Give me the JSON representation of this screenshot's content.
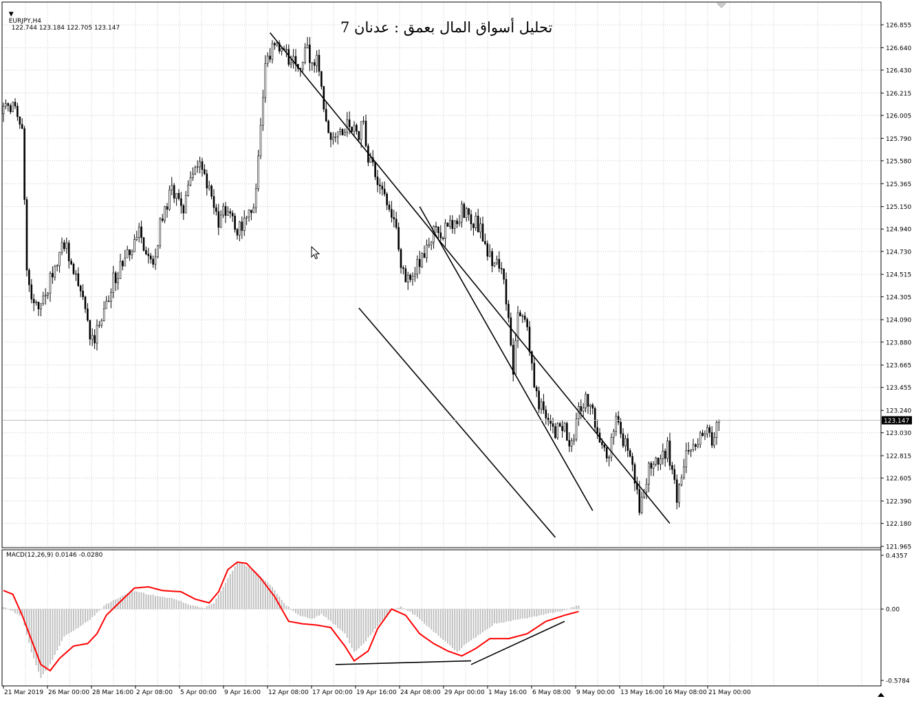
{
  "symbol_info": {
    "label": "EURJPY,H4",
    "ohlc": "122.744 123.184 122.705 123.147"
  },
  "title": "تحليل أسواق المال بعمق : عدنان 7",
  "macd_info": {
    "label": "MACD(12,26,9) 0.0146 -0.0280"
  },
  "icons": {
    "collapse": "triangle-down-icon",
    "scroll": "chart-scroll-marker-icon",
    "cursor": "mouse-pointer-icon"
  },
  "colors": {
    "candles": "#000000",
    "grid": "#c8c8c8",
    "histogram": "#c0c0c0",
    "signal": "#ff0000",
    "trendlines": "#000000",
    "current_price_line": "#c0c0c0"
  },
  "chart_data": [
    {
      "type": "candlestick",
      "symbol": "EURJPY",
      "timeframe": "H4",
      "y_ticks": [
        "126.855",
        "126.640",
        "126.430",
        "126.215",
        "126.005",
        "125.790",
        "125.580",
        "125.365",
        "125.150",
        "124.940",
        "124.730",
        "124.515",
        "124.305",
        "124.090",
        "123.880",
        "123.665",
        "123.455",
        "123.240",
        "123.030",
        "122.815",
        "122.605",
        "122.390",
        "122.180",
        "121.965"
      ],
      "ylim": [
        121.965,
        126.855
      ],
      "current_price": "123.147",
      "x_ticks": [
        "21 Mar 2019",
        "26 Mar 00:00",
        "28 Mar 16:00",
        "2 Apr 08:00",
        "5 Apr 00:00",
        "9 Apr 16:00",
        "12 Apr 08:00",
        "17 Apr 00:00",
        "19 Apr 16:00",
        "24 Apr 08:00",
        "29 Apr 00:00",
        "1 May 16:00",
        "6 May 08:00",
        "9 May 00:00",
        "13 May 16:00",
        "16 May 08:00",
        "21 May 00:00"
      ],
      "close_path": [
        [
          0,
          126.05
        ],
        [
          4,
          126.1
        ],
        [
          8,
          125.95
        ],
        [
          10,
          124.5
        ],
        [
          14,
          124.2
        ],
        [
          20,
          124.45
        ],
        [
          26,
          124.8
        ],
        [
          30,
          124.6
        ],
        [
          34,
          124.25
        ],
        [
          38,
          123.9
        ],
        [
          42,
          124.1
        ],
        [
          46,
          124.4
        ],
        [
          50,
          124.6
        ],
        [
          54,
          124.75
        ],
        [
          58,
          124.9
        ],
        [
          60,
          124.8
        ],
        [
          64,
          124.6
        ],
        [
          68,
          125.1
        ],
        [
          72,
          125.3
        ],
        [
          76,
          125.1
        ],
        [
          80,
          125.35
        ],
        [
          84,
          125.55
        ],
        [
          88,
          125.3
        ],
        [
          92,
          125.0
        ],
        [
          96,
          125.15
        ],
        [
          100,
          124.9
        ],
        [
          104,
          125.05
        ],
        [
          108,
          125.25
        ],
        [
          110,
          125.9
        ],
        [
          112,
          126.45
        ],
        [
          114,
          126.6
        ],
        [
          118,
          126.65
        ],
        [
          122,
          126.55
        ],
        [
          126,
          126.45
        ],
        [
          130,
          126.6
        ],
        [
          134,
          126.5
        ],
        [
          136,
          126.3
        ],
        [
          138,
          125.95
        ],
        [
          140,
          125.75
        ],
        [
          144,
          125.85
        ],
        [
          148,
          125.9
        ],
        [
          152,
          125.85
        ],
        [
          154,
          125.9
        ],
        [
          156,
          125.6
        ],
        [
          160,
          125.4
        ],
        [
          164,
          125.2
        ],
        [
          168,
          124.9
        ],
        [
          172,
          124.4
        ],
        [
          176,
          124.55
        ],
        [
          180,
          124.7
        ],
        [
          184,
          124.95
        ],
        [
          188,
          124.9
        ],
        [
          192,
          125.0
        ],
        [
          196,
          125.1
        ],
        [
          200,
          125.05
        ],
        [
          204,
          124.95
        ],
        [
          208,
          124.7
        ],
        [
          212,
          124.55
        ],
        [
          214,
          124.5
        ],
        [
          216,
          124.05
        ],
        [
          218,
          123.55
        ],
        [
          220,
          124.2
        ],
        [
          224,
          124.0
        ],
        [
          228,
          123.35
        ],
        [
          232,
          123.2
        ],
        [
          236,
          123.0
        ],
        [
          240,
          123.15
        ],
        [
          242,
          122.85
        ],
        [
          246,
          123.2
        ],
        [
          250,
          123.35
        ],
        [
          254,
          123.05
        ],
        [
          258,
          122.75
        ],
        [
          262,
          123.15
        ],
        [
          266,
          122.9
        ],
        [
          270,
          122.6
        ],
        [
          272,
          122.3
        ],
        [
          276,
          122.7
        ],
        [
          280,
          122.75
        ],
        [
          284,
          122.9
        ],
        [
          286,
          122.65
        ],
        [
          288,
          122.45
        ],
        [
          292,
          122.9
        ],
        [
          296,
          122.95
        ],
        [
          300,
          123.05
        ],
        [
          304,
          122.95
        ],
        [
          306,
          123.15
        ]
      ],
      "annotations": [
        {
          "kind": "trendline",
          "from": [
            114,
            126.78
          ],
          "to": [
            285,
            122.18
          ],
          "label": "channel upper line"
        },
        {
          "kind": "trendline",
          "from": [
            152,
            124.2
          ],
          "to": [
            236,
            122.05
          ],
          "label": "channel lower line"
        },
        {
          "kind": "trendline",
          "from": [
            178,
            125.15
          ],
          "to": [
            252,
            122.3
          ],
          "label": "inner resistance line"
        }
      ]
    },
    {
      "type": "macd",
      "title": "MACD(12,26,9) 0.0146 -0.0280",
      "y_ticks": [
        "0.4357",
        "0.00",
        "-0.5784"
      ],
      "ylim": [
        -0.5784,
        0.4357
      ],
      "series": [
        {
          "kind": "histogram",
          "values_path": [
            [
              0,
              0.02
            ],
            [
              8,
              -0.06
            ],
            [
              12,
              -0.35
            ],
            [
              16,
              -0.56
            ],
            [
              20,
              -0.45
            ],
            [
              26,
              -0.22
            ],
            [
              32,
              -0.15
            ],
            [
              38,
              -0.07
            ],
            [
              44,
              0.04
            ],
            [
              50,
              0.1
            ],
            [
              56,
              0.15
            ],
            [
              62,
              0.12
            ],
            [
              68,
              0.1
            ],
            [
              74,
              0.08
            ],
            [
              80,
              0.03
            ],
            [
              86,
              0.01
            ],
            [
              90,
              0.05
            ],
            [
              96,
              0.25
            ],
            [
              100,
              0.38
            ],
            [
              104,
              0.35
            ],
            [
              108,
              0.3
            ],
            [
              114,
              0.2
            ],
            [
              120,
              0.05
            ],
            [
              126,
              -0.05
            ],
            [
              132,
              -0.08
            ],
            [
              136,
              -0.04
            ],
            [
              140,
              -0.1
            ],
            [
              146,
              -0.2
            ],
            [
              150,
              -0.35
            ],
            [
              154,
              -0.28
            ],
            [
              160,
              -0.14
            ],
            [
              166,
              0.0
            ],
            [
              170,
              0.02
            ],
            [
              176,
              -0.05
            ],
            [
              182,
              -0.15
            ],
            [
              188,
              -0.25
            ],
            [
              194,
              -0.35
            ],
            [
              198,
              -0.28
            ],
            [
              204,
              -0.2
            ],
            [
              210,
              -0.12
            ],
            [
              216,
              -0.1
            ],
            [
              222,
              -0.08
            ],
            [
              228,
              -0.06
            ],
            [
              232,
              -0.04
            ],
            [
              238,
              -0.02
            ],
            [
              246,
              0.03
            ]
          ],
          "x_end": 246
        },
        {
          "name": "Signal",
          "kind": "line",
          "values_path": [
            [
              0,
              0.15
            ],
            [
              4,
              0.12
            ],
            [
              8,
              -0.05
            ],
            [
              12,
              -0.25
            ],
            [
              16,
              -0.45
            ],
            [
              20,
              -0.5
            ],
            [
              24,
              -0.4
            ],
            [
              30,
              -0.3
            ],
            [
              36,
              -0.28
            ],
            [
              40,
              -0.2
            ],
            [
              44,
              -0.05
            ],
            [
              50,
              0.06
            ],
            [
              56,
              0.17
            ],
            [
              62,
              0.18
            ],
            [
              68,
              0.15
            ],
            [
              76,
              0.14
            ],
            [
              82,
              0.08
            ],
            [
              88,
              0.05
            ],
            [
              92,
              0.14
            ],
            [
              96,
              0.32
            ],
            [
              100,
              0.38
            ],
            [
              104,
              0.37
            ],
            [
              110,
              0.25
            ],
            [
              116,
              0.1
            ],
            [
              122,
              -0.1
            ],
            [
              128,
              -0.12
            ],
            [
              134,
              -0.13
            ],
            [
              140,
              -0.15
            ],
            [
              146,
              -0.3
            ],
            [
              150,
              -0.42
            ],
            [
              156,
              -0.34
            ],
            [
              160,
              -0.16
            ],
            [
              166,
              0.0
            ],
            [
              172,
              -0.05
            ],
            [
              178,
              -0.2
            ],
            [
              184,
              -0.28
            ],
            [
              190,
              -0.34
            ],
            [
              196,
              -0.38
            ],
            [
              202,
              -0.32
            ],
            [
              208,
              -0.24
            ],
            [
              216,
              -0.24
            ],
            [
              224,
              -0.2
            ],
            [
              232,
              -0.1
            ],
            [
              240,
              -0.05
            ],
            [
              246,
              -0.02
            ]
          ],
          "x_end": 246
        }
      ],
      "annotations": [
        {
          "kind": "trendline",
          "from": [
            142,
            -0.45
          ],
          "to": [
            200,
            -0.42
          ],
          "label": "MACD low line"
        },
        {
          "kind": "trendline",
          "from": [
            200,
            -0.45
          ],
          "to": [
            240,
            -0.1
          ],
          "label": "MACD rising line"
        }
      ]
    }
  ]
}
